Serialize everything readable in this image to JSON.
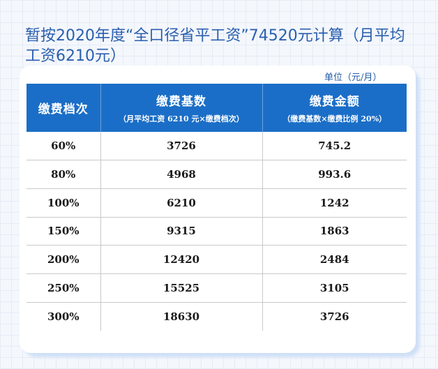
{
  "title": "暂按2020年度“全口径省平工资”74520元计算（月平均工资6210元）",
  "unit_label": "单位（元/月）",
  "table": {
    "headers": [
      {
        "main": "缴费档次",
        "sub": ""
      },
      {
        "main": "缴费基数",
        "sub": "（月平均工资 6210 元×缴费档次）"
      },
      {
        "main": "缴费金额",
        "sub": "（缴费基数×缴费比例 20%）"
      }
    ],
    "rows": [
      [
        "60%",
        "3726",
        "745.2"
      ],
      [
        "80%",
        "4968",
        "993.6"
      ],
      [
        "100%",
        "6210",
        "1242"
      ],
      [
        "150%",
        "9315",
        "1863"
      ],
      [
        "200%",
        "12420",
        "2484"
      ],
      [
        "250%",
        "15525",
        "3105"
      ],
      [
        "300%",
        "18630",
        "3726"
      ]
    ]
  },
  "colors": {
    "title": "#2a5fae",
    "header_bg": "#1b6ec7",
    "page_bg": "#f4f7fc"
  }
}
